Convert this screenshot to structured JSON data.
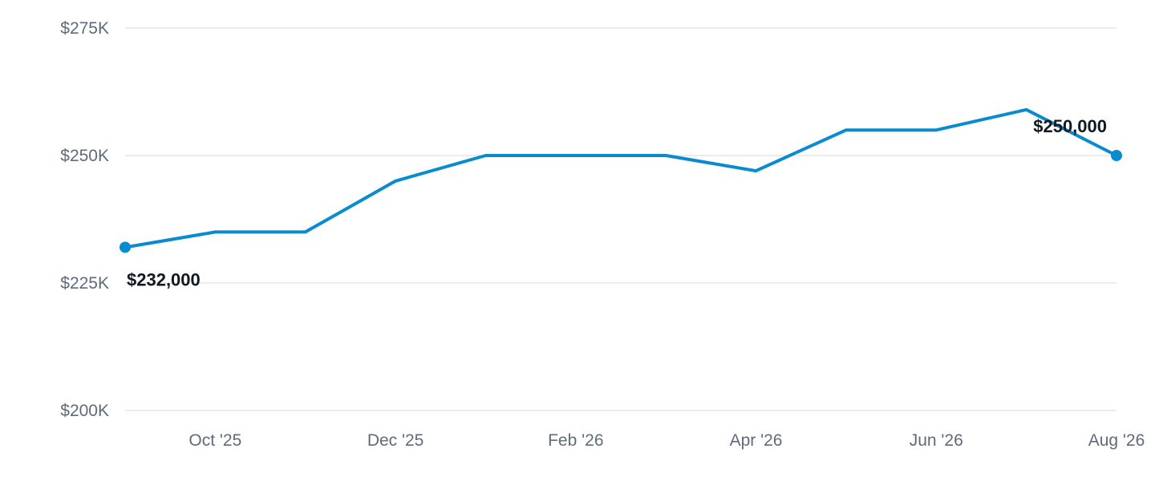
{
  "chart_data": {
    "type": "line",
    "title": "",
    "xlabel": "",
    "ylabel": "",
    "ylim": [
      200000,
      275000
    ],
    "y_ticks": [
      {
        "value": 200000,
        "label": "$200K"
      },
      {
        "value": 225000,
        "label": "$225K"
      },
      {
        "value": 250000,
        "label": "$250K"
      },
      {
        "value": 275000,
        "label": "$275K"
      }
    ],
    "x": [
      "2025-09",
      "2025-10",
      "2025-11",
      "2025-12",
      "2026-01",
      "2026-02",
      "2026-03",
      "2026-04",
      "2026-05",
      "2026-06",
      "2026-07",
      "2026-08"
    ],
    "x_ticks": [
      {
        "value": "2025-10",
        "label": "Oct '25"
      },
      {
        "value": "2025-12",
        "label": "Dec '25"
      },
      {
        "value": "2026-02",
        "label": "Feb '26"
      },
      {
        "value": "2026-04",
        "label": "Apr '26"
      },
      {
        "value": "2026-06",
        "label": "Jun '26"
      },
      {
        "value": "2026-08",
        "label": "Aug '26"
      }
    ],
    "series": [
      {
        "values": [
          232000,
          235000,
          235000,
          245000,
          250000,
          250000,
          250000,
          247000,
          255000,
          255000,
          259000,
          250000
        ],
        "color": "#0a8bd0"
      }
    ],
    "data_labels": [
      {
        "index": 0,
        "label": "$232,000"
      },
      {
        "index": 11,
        "label": "$250,000"
      }
    ],
    "grid": true,
    "legend": "none"
  }
}
